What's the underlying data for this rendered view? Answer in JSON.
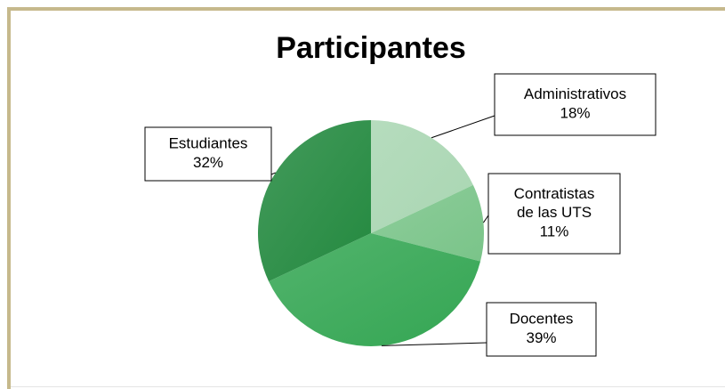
{
  "chart_data": {
    "type": "pie",
    "title": "Participantes",
    "categories": [
      "Administrativos",
      "Contratistas de las UTS",
      "Docentes",
      "Estudiantes"
    ],
    "values": [
      18,
      11,
      39,
      32
    ],
    "value_labels": [
      "18%",
      "11%",
      "39%",
      "32%"
    ],
    "colors": [
      "#a9d6b2",
      "#7ac489",
      "#34a653",
      "#23893f"
    ]
  }
}
